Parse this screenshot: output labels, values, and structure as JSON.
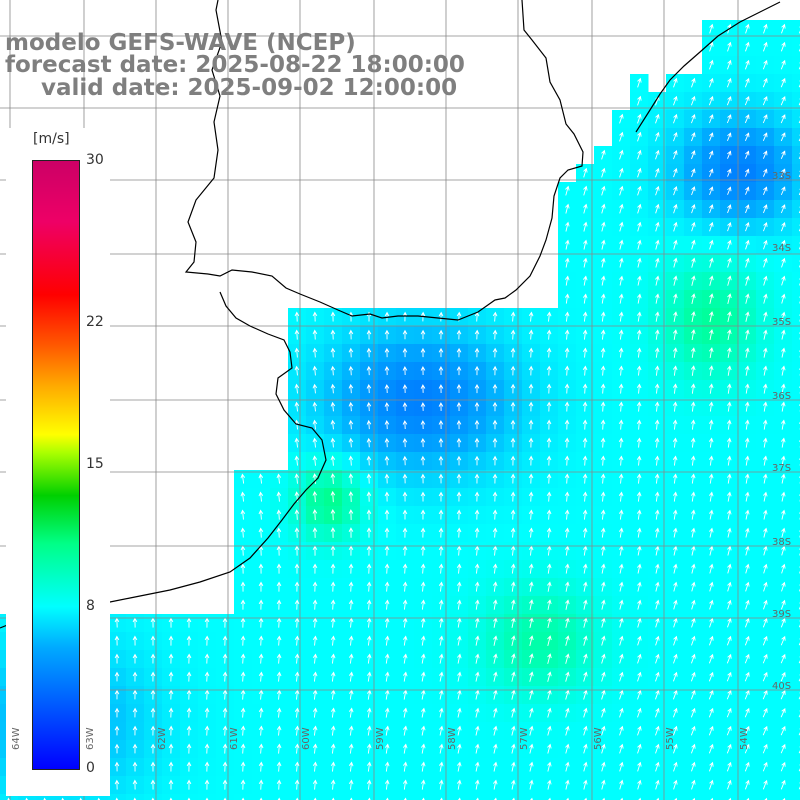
{
  "header": {
    "model_line": "modelo GEFS-WAVE (NCEP)",
    "forecast_line": "forecast date: 2025-08-22 18:00:00",
    "valid_line": "valid date: 2025-09-02 12:00:00"
  },
  "legend": {
    "unit": "[m/s]",
    "ticks": [
      {
        "label": "30",
        "value": 30
      },
      {
        "label": "22",
        "value": 22
      },
      {
        "label": "15",
        "value": 15
      },
      {
        "label": "8",
        "value": 8
      },
      {
        "label": "0",
        "value": 0
      }
    ],
    "min": 0,
    "max": 30
  },
  "grid": {
    "lat_labels": [
      "33S",
      "34S",
      "35S",
      "36S",
      "37S",
      "38S",
      "39S",
      "40S"
    ],
    "lon_labels": [
      "64W",
      "63W",
      "62W",
      "61W",
      "60W",
      "59W",
      "58W",
      "57W",
      "56W",
      "55W",
      "54W"
    ]
  },
  "field": {
    "variable": "wind speed",
    "colors": {
      "land": "#ffffff",
      "coast": "#000000",
      "grid": "#888888",
      "arrow": "#ffffff"
    }
  }
}
